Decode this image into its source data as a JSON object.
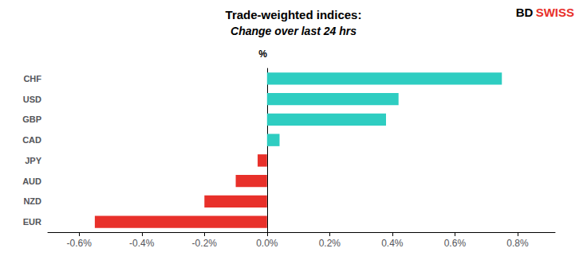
{
  "chart_data": {
    "type": "bar",
    "orientation": "horizontal",
    "title": "Trade-weighted indices:",
    "subtitle": "Change over last 24 hrs",
    "ylabel": "%",
    "categories": [
      "EUR",
      "NZD",
      "AUD",
      "JPY",
      "CAD",
      "GBP",
      "USD",
      "CHF"
    ],
    "values": [
      -0.55,
      -0.2,
      -0.1,
      -0.03,
      0.04,
      0.38,
      0.42,
      0.75
    ],
    "colors": [
      "#E8302A",
      "#E8302A",
      "#E8302A",
      "#E8302A",
      "#2ECDC1",
      "#2ECDC1",
      "#2ECDC1",
      "#2ECDC1"
    ],
    "xlim": [
      -0.7,
      0.92
    ],
    "xticks": [
      {
        "value": -0.6,
        "label": "-0.6%"
      },
      {
        "value": -0.4,
        "label": "-0.4%"
      },
      {
        "value": -0.2,
        "label": "-0.2%"
      },
      {
        "value": 0.0,
        "label": "0.0%"
      },
      {
        "value": 0.2,
        "label": "0.2%"
      },
      {
        "value": 0.4,
        "label": "0.4%"
      },
      {
        "value": 0.6,
        "label": "0.6%"
      },
      {
        "value": 0.8,
        "label": "0.8%"
      }
    ],
    "grid": false,
    "annotations": [
      {
        "text": "BD",
        "color": "#000000"
      },
      {
        "text": "SWISS",
        "color": "#E8302A"
      }
    ]
  }
}
